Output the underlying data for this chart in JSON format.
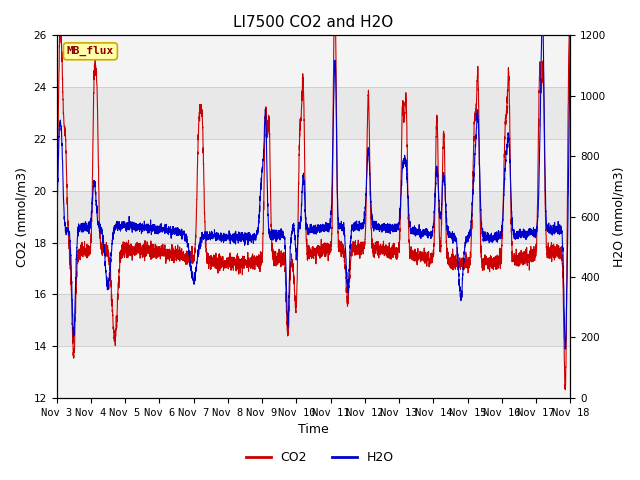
{
  "title": "LI7500 CO2 and H2O",
  "xlabel": "Time",
  "ylabel_left": "CO2 (mmol/m3)",
  "ylabel_right": "H2O (mmol/m3)",
  "ylim_left": [
    12,
    26
  ],
  "ylim_right": [
    0,
    1200
  ],
  "yticks_left": [
    12,
    14,
    16,
    18,
    20,
    22,
    24,
    26
  ],
  "yticks_right": [
    0,
    200,
    400,
    600,
    800,
    1000,
    1200
  ],
  "xtick_labels": [
    "Nov 3",
    "Nov 4",
    "Nov 5",
    "Nov 6",
    "Nov 7",
    "Nov 8",
    "Nov 9",
    "Nov 10",
    "Nov 11",
    "Nov 12",
    "Nov 13",
    "Nov 14",
    "Nov 15",
    "Nov 16",
    "Nov 17",
    "Nov 18"
  ],
  "co2_color": "#cc0000",
  "h2o_color": "#0000cc",
  "watermark_text": "MB_flux",
  "watermark_bg": "#ffffaa",
  "watermark_border": "#ccaa00",
  "legend_co2": "CO2",
  "legend_h2o": "H2O",
  "grid_color": "#cccccc",
  "bg_color": "#e8e8e8",
  "bg_color2": "#f4f4f4",
  "title_fontsize": 11,
  "axis_fontsize": 9,
  "tick_fontsize": 7.5
}
